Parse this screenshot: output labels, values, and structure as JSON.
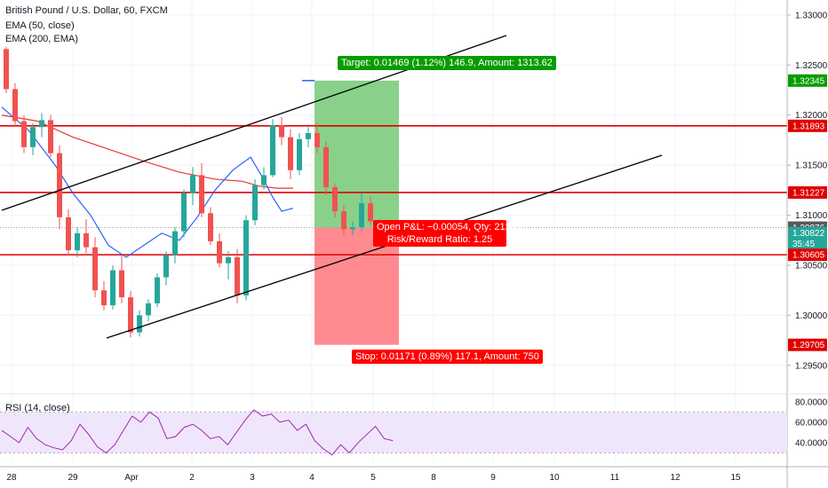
{
  "header": {
    "title": "British Pound / U.S. Dollar, 60, FXCM",
    "indicators": [
      "EMA (50, close)",
      "EMA (200, EMA)"
    ]
  },
  "rsi": {
    "label": "RSI (14, close)"
  },
  "position": {
    "target_label": "Target: 0.01469 (1.12%) 146.9, Amount: 1313.62",
    "pnl_label": "Open P&L: −0.00054, Qty: 21349",
    "rr_label": "Risk/Reward Ratio: 1.25",
    "stop_label": "Stop: 0.01171 (0.89%) 117.1, Amount: 750"
  },
  "colors": {
    "up": "#26a69a",
    "down": "#ef5350",
    "ema50": "#2962ff",
    "ema200": "#e53935",
    "level": "#e00000",
    "profit": "#89d18a",
    "loss": "#ff8a8f",
    "rsi_band": "#f0e6fb",
    "rsi_line": "#9c27b0"
  },
  "chart_data": {
    "type": "candlestick",
    "price_axis": {
      "range": [
        1.2925,
        1.3315
      ],
      "ticks": [
        "1.33000",
        "1.32500",
        "1.32000",
        "1.31500",
        "1.31000",
        "1.30500",
        "1.30000",
        "1.29500"
      ],
      "highlight_labels": [
        {
          "text": "1.32345",
          "value": 1.32345,
          "color": "#089c00"
        },
        {
          "text": "1.31893",
          "value": 1.31893,
          "color": "#e00000"
        },
        {
          "text": "1.31227",
          "value": 1.31227,
          "color": "#e00000"
        },
        {
          "text": "1.30876",
          "value": 1.30876,
          "color": "#595959"
        },
        {
          "text": "1.30822",
          "value": 1.30822,
          "color": "#26a69a"
        },
        {
          "text": "35:45",
          "value": 1.30715,
          "color": "#26a69a"
        },
        {
          "text": "1.30605",
          "value": 1.30605,
          "color": "#e00000"
        },
        {
          "text": "1.29705",
          "value": 1.29705,
          "color": "#e00000"
        }
      ]
    },
    "time_axis": {
      "ticks": [
        "28",
        "29",
        "Apr",
        "2",
        "3",
        "4",
        "5",
        "8",
        "9",
        "10",
        "11",
        "12",
        "15"
      ]
    },
    "horizontal_levels": [
      1.31893,
      1.31227,
      1.30605
    ],
    "channel": {
      "lower": [
        [
          0,
          1.3045
        ],
        [
          33,
          1.3086
        ]
      ],
      "upper": [
        [
          0,
          1.3102
        ],
        [
          43.5,
          1.3268
        ]
      ]
    },
    "ema50_path": [
      [
        0,
        1.3208
      ],
      [
        3,
        1.3185
      ],
      [
        6,
        1.315
      ],
      [
        8,
        1.3122
      ],
      [
        10,
        1.31
      ],
      [
        12,
        1.307
      ],
      [
        14,
        1.3058
      ],
      [
        16,
        1.307
      ],
      [
        18,
        1.3082
      ],
      [
        20,
        1.3075
      ],
      [
        22,
        1.3098
      ],
      [
        24,
        1.3125
      ],
      [
        26,
        1.3145
      ],
      [
        28,
        1.3158
      ],
      [
        29.2,
        1.314
      ],
      [
        30.5,
        1.3118
      ],
      [
        31.5,
        1.3104
      ],
      [
        32.8,
        1.3107
      ]
    ],
    "ema200_path": [
      [
        0,
        1.32
      ],
      [
        4,
        1.3194
      ],
      [
        8,
        1.3178
      ],
      [
        12,
        1.3166
      ],
      [
        16,
        1.3154
      ],
      [
        20,
        1.3143
      ],
      [
        24,
        1.3136
      ],
      [
        27,
        1.3134
      ],
      [
        29,
        1.3129
      ],
      [
        31,
        1.3127
      ],
      [
        32.8,
        1.3127
      ]
    ],
    "position": {
      "entry": 1.30876,
      "target": 1.32345,
      "stop": 1.29705,
      "start_index": 33.2,
      "end_index": 40
    },
    "candles": [
      [
        1.3266,
        1.3268,
        1.3222,
        1.3226
      ],
      [
        1.3226,
        1.3232,
        1.3188,
        1.3194
      ],
      [
        1.3194,
        1.32,
        1.3162,
        1.3168
      ],
      [
        1.3168,
        1.3192,
        1.316,
        1.3188
      ],
      [
        1.3188,
        1.3202,
        1.3178,
        1.3195
      ],
      [
        1.3195,
        1.32,
        1.3158,
        1.3162
      ],
      [
        1.3162,
        1.317,
        1.3086,
        1.3098
      ],
      [
        1.3098,
        1.3106,
        1.306,
        1.3065
      ],
      [
        1.3065,
        1.3088,
        1.3058,
        1.3082
      ],
      [
        1.3082,
        1.3096,
        1.3062,
        1.3068
      ],
      [
        1.3068,
        1.3078,
        1.3018,
        1.3025
      ],
      [
        1.3025,
        1.3034,
        1.3005,
        1.301
      ],
      [
        1.301,
        1.305,
        1.3006,
        1.3045
      ],
      [
        1.3045,
        1.306,
        1.3012,
        1.3018
      ],
      [
        1.3018,
        1.3024,
        1.2978,
        1.2983
      ],
      [
        1.2983,
        1.3005,
        1.2979,
        1.3
      ],
      [
        1.3,
        1.3016,
        1.2994,
        1.3012
      ],
      [
        1.3012,
        1.3042,
        1.3008,
        1.3038
      ],
      [
        1.3038,
        1.3064,
        1.303,
        1.306
      ],
      [
        1.306,
        1.3088,
        1.3052,
        1.3084
      ],
      [
        1.3084,
        1.3126,
        1.3078,
        1.3122
      ],
      [
        1.3122,
        1.3148,
        1.311,
        1.314
      ],
      [
        1.314,
        1.3152,
        1.3098,
        1.3102
      ],
      [
        1.3102,
        1.3108,
        1.307,
        1.3074
      ],
      [
        1.3074,
        1.3082,
        1.3048,
        1.3052
      ],
      [
        1.3052,
        1.3064,
        1.3036,
        1.3058
      ],
      [
        1.3058,
        1.3066,
        1.3012,
        1.302
      ],
      [
        1.302,
        1.31,
        1.3015,
        1.3095
      ],
      [
        1.3095,
        1.3136,
        1.309,
        1.313
      ],
      [
        1.313,
        1.3148,
        1.3126,
        1.314
      ],
      [
        1.314,
        1.3196,
        1.3138,
        1.319
      ],
      [
        1.319,
        1.3198,
        1.317,
        1.3178
      ],
      [
        1.3178,
        1.3186,
        1.3136,
        1.3145
      ],
      [
        1.3145,
        1.3182,
        1.314,
        1.3176
      ],
      [
        1.3176,
        1.3188,
        1.3168,
        1.3182
      ],
      [
        1.3182,
        1.3192,
        1.3162,
        1.3168
      ],
      [
        1.3168,
        1.3174,
        1.312,
        1.3128
      ],
      [
        1.3128,
        1.3132,
        1.3098,
        1.3104
      ],
      [
        1.3104,
        1.311,
        1.308,
        1.3086
      ],
      [
        1.3086,
        1.3094,
        1.308,
        1.3088
      ],
      [
        1.3088,
        1.3122,
        1.3084,
        1.3112
      ],
      [
        1.3112,
        1.3118,
        1.309,
        1.3094
      ],
      [
        1.3094,
        1.3096,
        1.3075,
        1.3082
      ]
    ],
    "rsi_series": [
      52,
      46,
      40,
      55,
      44,
      38,
      35,
      33,
      42,
      58,
      48,
      36,
      30,
      38,
      52,
      66,
      60,
      70,
      64,
      44,
      46,
      55,
      58,
      52,
      44,
      46,
      38,
      50,
      62,
      72,
      66,
      68,
      60,
      62,
      52,
      58,
      42,
      34,
      28,
      38,
      30,
      40,
      48,
      56,
      44,
      42
    ],
    "rsi_axis": {
      "ticks": [
        "80.0000",
        "60.0000",
        "40.0000"
      ],
      "band": [
        30,
        70
      ]
    }
  }
}
